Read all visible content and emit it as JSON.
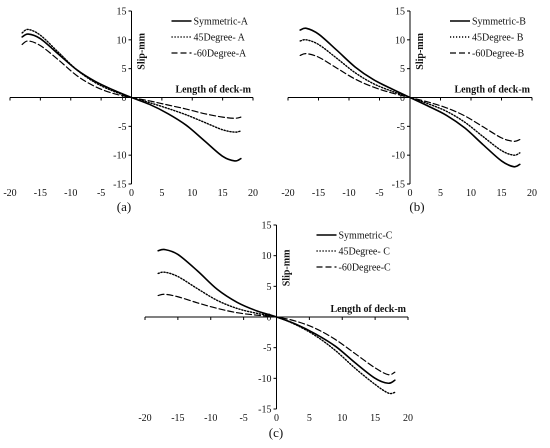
{
  "chart_data": [
    {
      "type": "line",
      "caption": "(a)",
      "xlabel": "Length of deck-m",
      "ylabel": "Slip-mm",
      "xlim": [
        -20,
        20
      ],
      "ylim": [
        -15,
        15
      ],
      "xticks": [
        -20,
        -15,
        -10,
        -5,
        0,
        5,
        10,
        15,
        20
      ],
      "yticks": [
        -15,
        -10,
        -5,
        0,
        5,
        10,
        15
      ],
      "legend_position": "top-right",
      "series": [
        {
          "name": "Symmetric-A",
          "style": "solid",
          "x": [
            -18,
            -17,
            -15,
            -12,
            -9,
            -6,
            -3,
            0,
            3,
            6,
            9,
            12,
            15,
            17,
            18
          ],
          "y": [
            10.5,
            11.0,
            10.2,
            7.5,
            4.8,
            2.8,
            1.3,
            0,
            -1.2,
            -2.8,
            -4.8,
            -7.5,
            -10.2,
            -11.0,
            -10.6
          ]
        },
        {
          "name": "45Degree- A",
          "style": "dotted",
          "x": [
            -18,
            -17,
            -15,
            -12,
            -9,
            -6,
            -3,
            0,
            3,
            6,
            9,
            12,
            15,
            17,
            18
          ],
          "y": [
            11.2,
            11.8,
            10.8,
            7.8,
            4.8,
            2.6,
            1.1,
            0,
            -0.9,
            -1.9,
            -3.0,
            -4.3,
            -5.6,
            -6.0,
            -5.8
          ]
        },
        {
          "name": "-60Degree-A",
          "style": "dashed",
          "x": [
            -18,
            -17,
            -15,
            -12,
            -9,
            -6,
            -3,
            0,
            3,
            6,
            9,
            12,
            15,
            17,
            18
          ],
          "y": [
            9.2,
            9.8,
            9.0,
            6.5,
            3.8,
            1.9,
            0.7,
            0,
            -0.6,
            -1.3,
            -2.0,
            -2.8,
            -3.4,
            -3.6,
            -3.4
          ]
        }
      ]
    },
    {
      "type": "line",
      "caption": "(b)",
      "xlabel": "Length of deck-m",
      "ylabel": "Slip-mm",
      "xlim": [
        -20,
        20
      ],
      "ylim": [
        -15,
        15
      ],
      "xticks": [
        -20,
        -15,
        -10,
        -5,
        0,
        5,
        10,
        15,
        20
      ],
      "yticks": [
        -15,
        -10,
        -5,
        0,
        5,
        10,
        15
      ],
      "legend_position": "top-right",
      "series": [
        {
          "name": "Symmetric-B",
          "style": "solid",
          "x": [
            -18,
            -17,
            -15,
            -12,
            -9,
            -6,
            -3,
            0,
            3,
            6,
            9,
            12,
            15,
            17,
            18
          ],
          "y": [
            11.7,
            12.0,
            11.0,
            8.2,
            5.3,
            3.1,
            1.5,
            0,
            -1.5,
            -3.1,
            -5.3,
            -8.2,
            -11.0,
            -12.0,
            -11.6
          ]
        },
        {
          "name": "45Degree- B",
          "style": "dotted",
          "x": [
            -18,
            -17,
            -15,
            -12,
            -9,
            -6,
            -3,
            0,
            3,
            6,
            9,
            12,
            15,
            17,
            18
          ],
          "y": [
            9.8,
            10.0,
            9.2,
            6.8,
            4.3,
            2.4,
            1.1,
            0,
            -1.1,
            -2.4,
            -4.3,
            -6.8,
            -9.2,
            -10.0,
            -9.6
          ]
        },
        {
          "name": "-60Degree-B",
          "style": "dashed",
          "x": [
            -18,
            -17,
            -15,
            -12,
            -9,
            -6,
            -3,
            0,
            3,
            6,
            9,
            12,
            15,
            17,
            18
          ],
          "y": [
            7.3,
            7.6,
            7.0,
            5.1,
            3.2,
            1.8,
            0.8,
            0,
            -0.8,
            -1.8,
            -3.2,
            -5.1,
            -7.0,
            -7.6,
            -7.3
          ]
        }
      ]
    },
    {
      "type": "line",
      "caption": "(c)",
      "xlabel": "Length of deck-m",
      "ylabel": "Slip-mm",
      "xlim": [
        -20,
        20
      ],
      "ylim": [
        -15,
        15
      ],
      "xticks": [
        -20,
        -15,
        -10,
        -5,
        0,
        5,
        10,
        15,
        20
      ],
      "yticks": [
        -15,
        -10,
        -5,
        0,
        5,
        10,
        15
      ],
      "legend_position": "top-right",
      "series": [
        {
          "name": "Symmetric-C",
          "style": "solid",
          "x": [
            -18,
            -17,
            -15,
            -12,
            -9,
            -6,
            -3,
            0,
            3,
            6,
            9,
            12,
            15,
            17,
            18
          ],
          "y": [
            10.8,
            11.0,
            10.2,
            7.5,
            4.5,
            2.4,
            1.0,
            0,
            -1.2,
            -2.8,
            -4.8,
            -7.5,
            -10.0,
            -10.8,
            -10.3
          ]
        },
        {
          "name": "45Degree- C",
          "style": "dotted",
          "x": [
            -18,
            -17,
            -15,
            -12,
            -9,
            -6,
            -3,
            0,
            3,
            6,
            9,
            12,
            15,
            17,
            18
          ],
          "y": [
            7.1,
            7.3,
            6.6,
            4.6,
            2.7,
            1.4,
            0.6,
            0,
            -1.3,
            -3.1,
            -5.5,
            -8.4,
            -11.0,
            -12.4,
            -12.3
          ]
        },
        {
          "name": "-60Degree-C",
          "style": "dashed",
          "x": [
            -18,
            -17,
            -15,
            -12,
            -9,
            -6,
            -3,
            0,
            3,
            6,
            9,
            12,
            15,
            17,
            18
          ],
          "y": [
            3.5,
            3.7,
            3.3,
            2.3,
            1.4,
            0.7,
            0.3,
            0,
            -0.7,
            -1.9,
            -3.7,
            -6.0,
            -8.3,
            -9.4,
            -9.0
          ]
        }
      ]
    }
  ]
}
